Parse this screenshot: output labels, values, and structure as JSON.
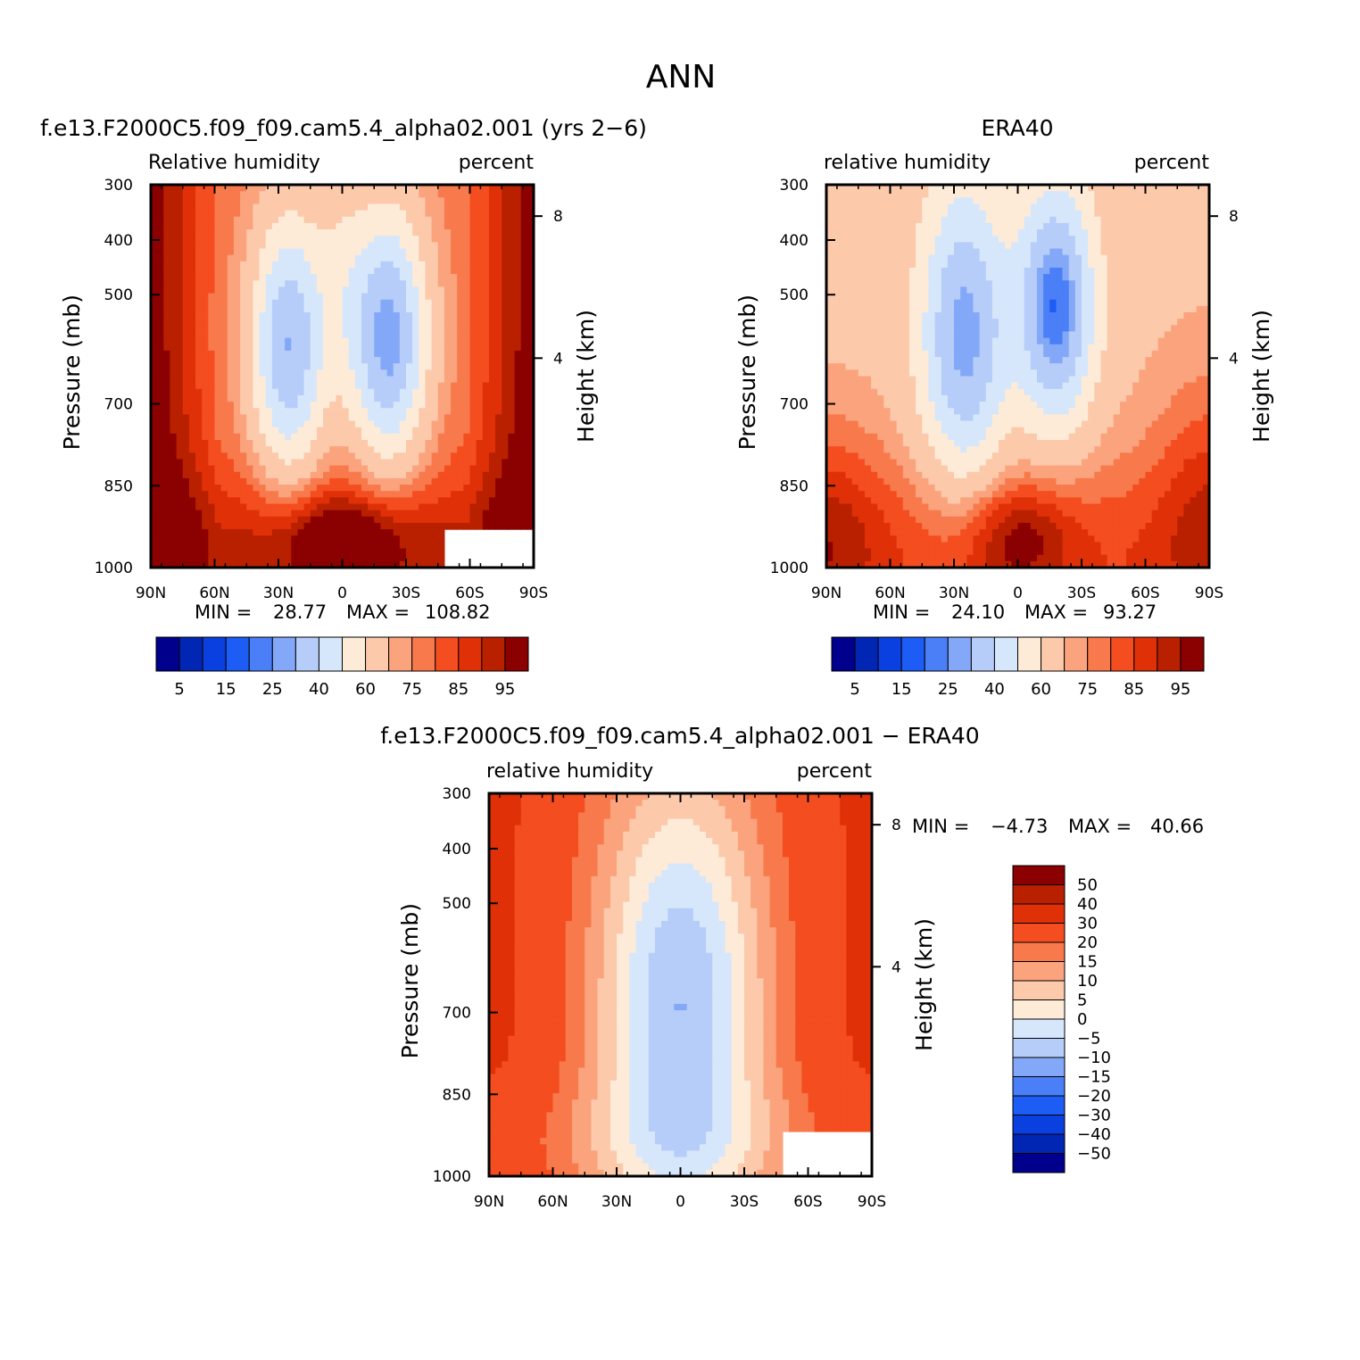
{
  "page_title": "ANN",
  "chart_data": [
    {
      "type": "heatmap",
      "title": "f.e13.F2000C5.f09_f09.cam5.4_alpha02.001 (yrs 2-6)",
      "left_label": "Relative humidity",
      "right_label": "percent",
      "ylabel": "Pressure (mb)",
      "ylabel_right": "Height (km)",
      "x_ticks": [
        "90N",
        "60N",
        "30N",
        "0",
        "30S",
        "60S",
        "90S"
      ],
      "y_ticks": [
        "300",
        "400",
        "500",
        "700",
        "850",
        "1000"
      ],
      "height_ticks": [
        "8",
        "4"
      ],
      "ylim": [
        1000,
        300
      ],
      "stats": {
        "min_label": "MIN =",
        "min": "28.77",
        "max_label": "MAX =",
        "max": "108.82"
      },
      "colorbar": {
        "orientation": "horizontal",
        "labels": [
          "5",
          "15",
          "25",
          "40",
          "60",
          "75",
          "85",
          "95"
        ],
        "colors": [
          "#00008c",
          "#0026b3",
          "#0a3fe0",
          "#1d5cf5",
          "#4a7ff7",
          "#84a8f8",
          "#b6cdf9",
          "#d7e7fb",
          "#fdebd8",
          "#fcc9ab",
          "#fba37d",
          "#f87a4c",
          "#f44d1f",
          "#e03008",
          "#b82000",
          "#8b0000"
        ]
      }
    },
    {
      "type": "heatmap",
      "title": "ERA40",
      "left_label": "relative humidity",
      "right_label": "percent",
      "ylabel": "Pressure (mb)",
      "ylabel_right": "Height (km)",
      "x_ticks": [
        "90N",
        "60N",
        "30N",
        "0",
        "30S",
        "60S",
        "90S"
      ],
      "y_ticks": [
        "300",
        "400",
        "500",
        "700",
        "850",
        "1000"
      ],
      "height_ticks": [
        "8",
        "4"
      ],
      "ylim": [
        1000,
        300
      ],
      "stats": {
        "min_label": "MIN =",
        "min": "24.10",
        "max_label": "MAX =",
        "max": "93.27"
      },
      "colorbar": {
        "orientation": "horizontal",
        "labels": [
          "5",
          "15",
          "25",
          "40",
          "60",
          "75",
          "85",
          "95"
        ],
        "colors": [
          "#00008c",
          "#0026b3",
          "#0a3fe0",
          "#1d5cf5",
          "#4a7ff7",
          "#84a8f8",
          "#b6cdf9",
          "#d7e7fb",
          "#fdebd8",
          "#fcc9ab",
          "#fba37d",
          "#f87a4c",
          "#f44d1f",
          "#e03008",
          "#b82000",
          "#8b0000"
        ]
      }
    },
    {
      "type": "heatmap",
      "title": "f.e13.F2000C5.f09_f09.cam5.4_alpha02.001 - ERA40",
      "left_label": "relative humidity",
      "right_label": "percent",
      "ylabel": "Pressure (mb)",
      "ylabel_right": "Height (km)",
      "x_ticks": [
        "90N",
        "60N",
        "30N",
        "0",
        "30S",
        "60S",
        "90S"
      ],
      "y_ticks": [
        "300",
        "400",
        "500",
        "700",
        "850",
        "1000"
      ],
      "height_ticks": [
        "8",
        "4"
      ],
      "ylim": [
        1000,
        300
      ],
      "stats": {
        "min_label": "MIN =",
        "min": "-4.73",
        "max_label": "MAX =",
        "max": "40.66"
      },
      "colorbar": {
        "orientation": "vertical",
        "labels": [
          "50",
          "40",
          "30",
          "20",
          "15",
          "10",
          "5",
          "0",
          "-5",
          "-10",
          "-15",
          "-20",
          "-30",
          "-40",
          "-50"
        ],
        "colors": [
          "#8b0000",
          "#b82000",
          "#e03008",
          "#f44d1f",
          "#f87a4c",
          "#fba37d",
          "#fcc9ab",
          "#fdebd8",
          "#d7e7fb",
          "#b6cdf9",
          "#84a8f8",
          "#4a7ff7",
          "#1d5cf5",
          "#0a3fe0",
          "#0026b3",
          "#00008c"
        ]
      }
    }
  ]
}
